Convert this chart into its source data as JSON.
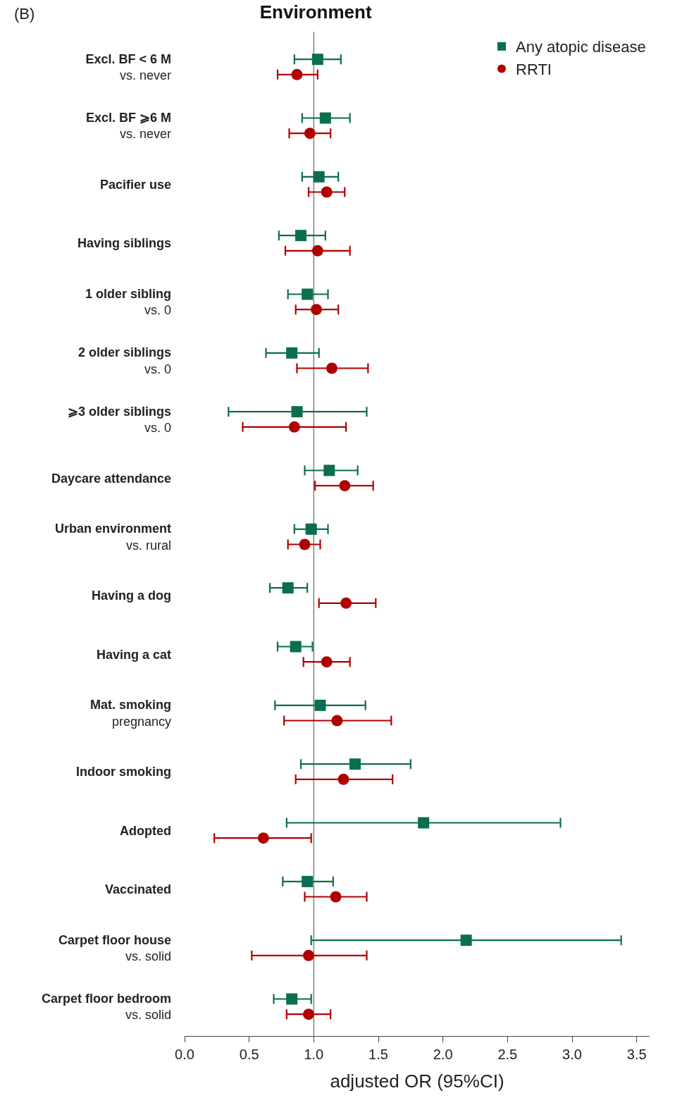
{
  "chart_data": {
    "type": "scatter",
    "orientation": "horizontal",
    "title": "Environment",
    "xlabel": "adjusted OR (95%CI)",
    "annotations": [
      "(B)"
    ],
    "categories": [
      "Excl. BF < 6 M\nvs. never",
      "Excl. BF ⩾6 M\nvs. never",
      "Pacifier use",
      "Having siblings",
      "1 older sibling\nvs. 0",
      "2 older siblings\nvs. 0",
      "⩾3 older siblings\nvs. 0",
      "Daycare attendance",
      "Urban environment\nvs. rural",
      "Having a dog",
      "Having a cat",
      "Mat. smoking\npregnancy",
      "Indoor smoking",
      "Adopted",
      "Vaccinated",
      "Carpet floor house\nvs. solid",
      "Carpet floor bedroom\nvs. solid"
    ],
    "series": [
      {
        "name": "Any atopic disease",
        "color": "#0b6e4f",
        "marker": "square",
        "values": [
          1.03,
          1.09,
          1.04,
          0.9,
          0.95,
          0.83,
          0.87,
          1.12,
          0.98,
          0.8,
          0.86,
          1.05,
          1.32,
          1.85,
          0.95,
          2.18,
          0.83
        ],
        "errors": [
          [
            0.85,
            1.21
          ],
          [
            0.91,
            1.28
          ],
          [
            0.91,
            1.19
          ],
          [
            0.73,
            1.09
          ],
          [
            0.8,
            1.11
          ],
          [
            0.63,
            1.04
          ],
          [
            0.34,
            1.41
          ],
          [
            0.93,
            1.34
          ],
          [
            0.85,
            1.11
          ],
          [
            0.66,
            0.95
          ],
          [
            0.72,
            0.99
          ],
          [
            0.7,
            1.4
          ],
          [
            0.9,
            1.75
          ],
          [
            0.79,
            2.91
          ],
          [
            0.76,
            1.15
          ],
          [
            0.98,
            3.38
          ],
          [
            0.69,
            0.98
          ]
        ]
      },
      {
        "name": "RRTI",
        "color": "#b00000",
        "marker": "circle",
        "values": [
          0.87,
          0.97,
          1.1,
          1.03,
          1.02,
          1.14,
          0.85,
          1.24,
          0.93,
          1.25,
          1.1,
          1.18,
          1.23,
          0.61,
          1.17,
          0.96,
          0.96
        ],
        "errors": [
          [
            0.72,
            1.03
          ],
          [
            0.81,
            1.13
          ],
          [
            0.96,
            1.24
          ],
          [
            0.78,
            1.28
          ],
          [
            0.86,
            1.19
          ],
          [
            0.87,
            1.42
          ],
          [
            0.45,
            1.25
          ],
          [
            1.01,
            1.46
          ],
          [
            0.8,
            1.05
          ],
          [
            1.04,
            1.48
          ],
          [
            0.92,
            1.28
          ],
          [
            0.77,
            1.6
          ],
          [
            0.86,
            1.61
          ],
          [
            0.23,
            0.98
          ],
          [
            0.93,
            1.41
          ],
          [
            0.52,
            1.41
          ],
          [
            0.79,
            1.13
          ]
        ]
      }
    ],
    "xlim": [
      0,
      3.6
    ],
    "xticks": [
      {
        "value": 0,
        "label": "0.0"
      },
      {
        "value": 0.5,
        "label": "0.5"
      },
      {
        "value": 1,
        "label": "1.0"
      },
      {
        "value": 1.5,
        "label": "1.5"
      },
      {
        "value": 2,
        "label": "2.0"
      },
      {
        "value": 2.5,
        "label": "2.5"
      },
      {
        "value": 3,
        "label": "3.0"
      },
      {
        "value": 3.5,
        "label": "3.5"
      }
    ],
    "ref_lines": [
      {
        "axis": "x",
        "value": 1,
        "color": "#808080"
      }
    ],
    "grid": false,
    "legend": "top right"
  }
}
